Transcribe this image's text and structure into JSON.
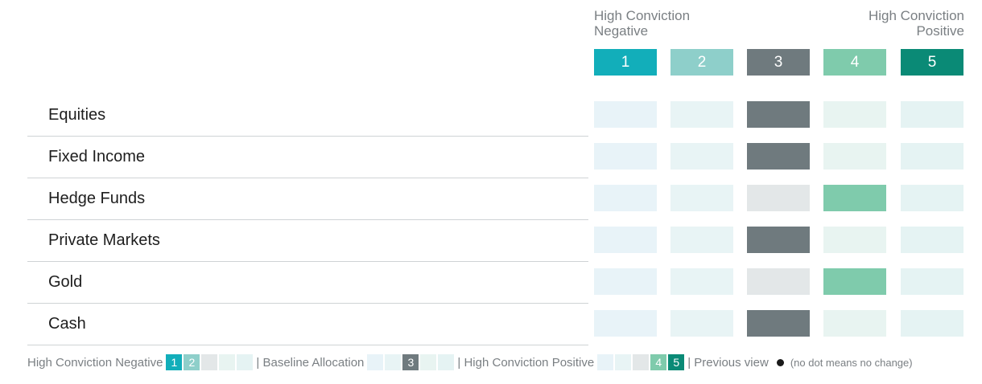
{
  "header": {
    "negative_line1": "High Conviction",
    "negative_line2": "Negative",
    "positive_line1": "High Conviction",
    "positive_line2": "Positive"
  },
  "scale": [
    {
      "label": "1",
      "color": "#12aeba"
    },
    {
      "label": "2",
      "color": "#8ecfca"
    },
    {
      "label": "3",
      "color": "#6f7a7e"
    },
    {
      "label": "4",
      "color": "#7fcbac"
    },
    {
      "label": "5",
      "color": "#0a8a76"
    }
  ],
  "inactive_colors": [
    "#e8f3f8",
    "#e8f4f5",
    "#e3e7e8",
    "#e8f4f1",
    "#e5f3f3"
  ],
  "chart_data": {
    "type": "table",
    "categories": [
      "Equities",
      "Fixed Income",
      "Hedge Funds",
      "Private Markets",
      "Gold",
      "Cash"
    ],
    "scale_min": 1,
    "scale_max": 5,
    "values": [
      3,
      3,
      4,
      3,
      4,
      3
    ]
  },
  "legend": {
    "negative_label": "High Conviction Negative",
    "baseline_label": "| Baseline Allocation",
    "positive_label": "| High Conviction Positive",
    "previous_label": "| Previous view",
    "note": "(no dot means no change)",
    "neg_nums": [
      "1",
      "2"
    ],
    "base_num": "3",
    "pos_nums": [
      "4",
      "5"
    ]
  }
}
